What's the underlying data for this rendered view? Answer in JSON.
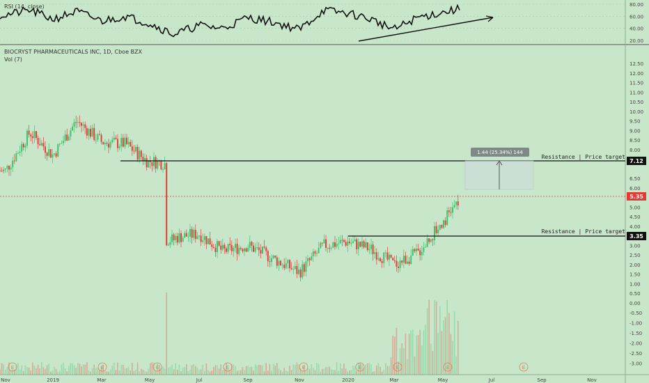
{
  "colors": {
    "background": "#c8e6c9",
    "up": "#3ec46d",
    "down": "#e2403a",
    "rsi": "#111111",
    "last_price": "#e53935",
    "level_tag": "#111111",
    "measure_box": "#cfd8dc"
  },
  "rsi_panel": {
    "title": "RSI (14, close)",
    "ticks": [
      "80.00",
      "60.00",
      "40.00",
      "20.00"
    ]
  },
  "price_panel": {
    "title": "BIOCRYST PHARMACEUTICALS INC, 1D, Cboe BZX",
    "vol_label": "Vol (7)",
    "price_ticks": [
      "12.50",
      "12.00",
      "11.50",
      "11.00",
      "10.50",
      "10.00",
      "9.50",
      "9.00",
      "8.50",
      "8.00",
      "7.50",
      "6.50",
      "6.00",
      "5.00",
      "4.50",
      "4.00",
      "3.50",
      "3.00",
      "2.50",
      "2.00",
      "1.50",
      "1.00",
      "0.50",
      "0.00"
    ],
    "vol_ticks": [
      "-0.50",
      "-1.00",
      "-1.50",
      "-2.00",
      "-2.50",
      "-3.00"
    ],
    "last_price": "5.35",
    "levels": [
      {
        "value": "7.12",
        "label": "Resistance | Price target"
      },
      {
        "value": "3.35",
        "label": "Resistance | Price target"
      }
    ],
    "measure_label": "1.44 (25.34%) 144",
    "earnings_marker": "E"
  },
  "x_axis": {
    "ticks": [
      "Nov",
      "2019",
      "Mar",
      "May",
      "Jul",
      "Sep",
      "Nov",
      "2020",
      "Mar",
      "May",
      "Jul",
      "Sep",
      "Nov"
    ]
  },
  "chart_data": {
    "type": "candlestick",
    "title": "BIOCRYST PHARMACEUTICALS INC, 1D, Cboe BZX",
    "ylim": [
      -3.2,
      12.9
    ],
    "price_points": [
      {
        "x": "2018-11",
        "y": 6.9
      },
      {
        "x": "2018-12",
        "y": 8.9
      },
      {
        "x": "2019-01",
        "y": 7.7
      },
      {
        "x": "2019-02",
        "y": 9.5
      },
      {
        "x": "2019-03",
        "y": 8.4
      },
      {
        "x": "2019-04",
        "y": 8.3
      },
      {
        "x": "2019-05",
        "y": 7.3
      },
      {
        "x": "2019-06",
        "y": 3.4
      },
      {
        "x": "2019-07",
        "y": 3.6
      },
      {
        "x": "2019-08",
        "y": 2.7
      },
      {
        "x": "2019-09",
        "y": 3.0
      },
      {
        "x": "2019-10",
        "y": 2.3
      },
      {
        "x": "2019-11",
        "y": 1.6
      },
      {
        "x": "2019-12",
        "y": 3.0
      },
      {
        "x": "2020-01",
        "y": 3.2
      },
      {
        "x": "2020-02",
        "y": 2.8
      },
      {
        "x": "2020-03",
        "y": 2.0
      },
      {
        "x": "2020-04",
        "y": 2.6
      },
      {
        "x": "2020-05",
        "y": 5.35
      }
    ],
    "resistance_levels": [
      7.12,
      3.35
    ],
    "last_price": 5.35,
    "measure": {
      "change": 1.44,
      "percent": 25.34,
      "bars": 144
    },
    "rsi_ylim": [
      15,
      85
    ],
    "rsi_points": [
      {
        "x": "2018-11",
        "y": 62
      },
      {
        "x": "2018-12",
        "y": 70
      },
      {
        "x": "2019-01",
        "y": 55
      },
      {
        "x": "2019-02",
        "y": 68
      },
      {
        "x": "2019-03",
        "y": 52
      },
      {
        "x": "2019-04",
        "y": 60
      },
      {
        "x": "2019-05",
        "y": 48
      },
      {
        "x": "2019-06",
        "y": 30
      },
      {
        "x": "2019-07",
        "y": 45
      },
      {
        "x": "2019-08",
        "y": 40
      },
      {
        "x": "2019-09",
        "y": 58
      },
      {
        "x": "2019-10",
        "y": 50
      },
      {
        "x": "2019-11",
        "y": 38
      },
      {
        "x": "2019-12",
        "y": 70
      },
      {
        "x": "2020-01",
        "y": 65
      },
      {
        "x": "2020-02",
        "y": 55
      },
      {
        "x": "2020-03",
        "y": 38
      },
      {
        "x": "2020-04",
        "y": 58
      },
      {
        "x": "2020-05",
        "y": 72
      }
    ]
  }
}
